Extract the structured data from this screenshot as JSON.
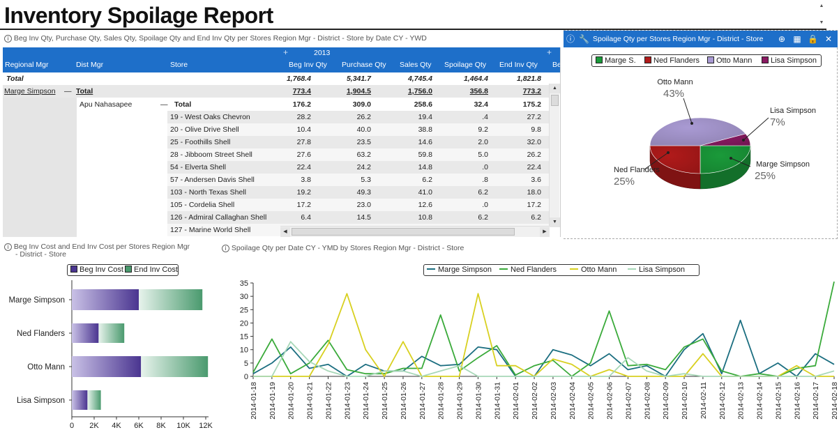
{
  "report": {
    "title": "Inventory Spoilage Report"
  },
  "table": {
    "caption": "Beg Inv Qty, Purchase Qty, Sales Qty, Spoilage Qty and End Inv Qty per Stores Region Mgr - District - Store by Date CY - YWD",
    "year": "2013",
    "headers": {
      "regional_mgr": "Regional Mgr",
      "dist_mgr": "Dist Mgr",
      "store": "Store",
      "beg": "Beg Inv Qty",
      "purchase": "Purchase Qty",
      "sales": "Sales Qty",
      "spoilage": "Spoilage Qty",
      "end": "End Inv Qty",
      "extra": "Be"
    },
    "grand_total": {
      "label": "Total",
      "beg": "1,768.4",
      "purchase": "5,341.7",
      "sales": "4,745.4",
      "spoilage": "1,464.4",
      "end": "1,821.8"
    },
    "region_row": {
      "mgr": "Marge Simpson",
      "collapse": "—",
      "label": "Total",
      "beg": "773.4",
      "purchase": "1,904.5",
      "sales": "1,756.0",
      "spoilage": "356.8",
      "end": "773.2"
    },
    "district_row": {
      "mgr": "Apu Nahasapee",
      "collapse": "—",
      "label": "Total",
      "beg": "176.2",
      "purchase": "309.0",
      "sales": "258.6",
      "spoilage": "32.4",
      "end": "175.2"
    },
    "stores": [
      {
        "store": "19 - West Oaks Chevron",
        "beg": "28.2",
        "purchase": "26.2",
        "sales": "19.4",
        "spoilage": ".4",
        "end": "27.2"
      },
      {
        "store": "20 - Olive Drive Shell",
        "beg": "10.4",
        "purchase": "40.0",
        "sales": "38.8",
        "spoilage": "9.2",
        "end": "9.8"
      },
      {
        "store": "25 - Foothills Shell",
        "beg": "27.8",
        "purchase": "23.5",
        "sales": "14.6",
        "spoilage": "2.0",
        "end": "32.0"
      },
      {
        "store": "28 - Jibboom Street Shell",
        "beg": "27.6",
        "purchase": "63.2",
        "sales": "59.8",
        "spoilage": "5.0",
        "end": "26.2"
      },
      {
        "store": "54 - Elverta Shell",
        "beg": "22.4",
        "purchase": "24.2",
        "sales": "14.8",
        "spoilage": ".0",
        "end": "22.4"
      },
      {
        "store": "57 - Andersen Davis Shell",
        "beg": "3.8",
        "purchase": "5.3",
        "sales": "6.2",
        "spoilage": ".8",
        "end": "3.6"
      },
      {
        "store": "103 - North Texas Shell",
        "beg": "19.2",
        "purchase": "49.3",
        "sales": "41.0",
        "spoilage": "6.2",
        "end": "18.0"
      },
      {
        "store": "105 - Cordelia Shell",
        "beg": "17.2",
        "purchase": "23.0",
        "sales": "12.6",
        "spoilage": ".0",
        "end": "17.2"
      },
      {
        "store": "126 - Admiral Callaghan Shell",
        "beg": "6.4",
        "purchase": "14.5",
        "sales": "10.8",
        "spoilage": "6.2",
        "end": "6.2"
      },
      {
        "store": "127 - Marine World Shell",
        "beg": "",
        "purchase": "",
        "sales": "",
        "spoilage": "",
        "end": ""
      }
    ]
  },
  "pie_panel": {
    "caption": "Spoilage Qty per Stores Region Mgr - District - Store",
    "icons": [
      "info-icon",
      "wrench-icon",
      "add-icon",
      "grid-icon",
      "lock-icon",
      "close-icon"
    ],
    "legend": [
      {
        "label": "Marge S.",
        "color": "#1a9a3a"
      },
      {
        "label": "Ned Flanders",
        "color": "#b01a1a"
      },
      {
        "label": "Otto Mann",
        "color": "#a99ad3"
      },
      {
        "label": "Lisa Simpson",
        "color": "#8a1a62"
      }
    ]
  },
  "bar_panel": {
    "caption_line1": "Beg Inv Cost and End Inv Cost per Stores Region Mgr",
    "caption_line2": "- District - Store"
  },
  "line_panel": {
    "caption": "Spoilage Qty per Date CY - YMD by Stores Region Mgr - District - Store"
  },
  "colors": {
    "header_blue": "#1e6fc9"
  },
  "chart_data": [
    {
      "type": "pie",
      "categories": [
        "Marge Simpson",
        "Ned Flanders",
        "Otto Mann",
        "Lisa Simpson"
      ],
      "values": [
        25,
        25,
        43,
        7
      ],
      "value_labels": [
        "25%",
        "25%",
        "43%",
        "7%"
      ],
      "colors": [
        "#1a9a3a",
        "#b01a1a",
        "#a99ad3",
        "#8a1a62"
      ]
    },
    {
      "type": "bar",
      "orientation": "horizontal",
      "stacked": true,
      "categories": [
        "Marge Simpson",
        "Ned Flanders",
        "Otto Mann",
        "Lisa Simpson"
      ],
      "series": [
        {
          "name": "Beg Inv Cost",
          "values": [
            6000,
            2400,
            6200,
            1400
          ],
          "color": "#5a3f9e"
        },
        {
          "name": "End Inv Cost",
          "values": [
            5700,
            2300,
            6000,
            1200
          ],
          "color": "#4a9a6e"
        }
      ],
      "xlim": [
        0,
        12000
      ],
      "xticks": [
        0,
        2000,
        4000,
        6000,
        8000,
        10000,
        12000
      ],
      "xtick_labels": [
        "0",
        "2K",
        "4K",
        "6K",
        "8K",
        "10K",
        "12K"
      ],
      "legend": "top"
    },
    {
      "type": "line",
      "x": [
        "2014-01-18",
        "2014-01-19",
        "2014-01-20",
        "2014-01-21",
        "2014-01-22",
        "2014-01-23",
        "2014-01-24",
        "2014-01-25",
        "2014-01-26",
        "2014-01-27",
        "2014-01-28",
        "2014-01-29",
        "2014-01-30",
        "2014-01-31",
        "2014-02-01",
        "2014-02-02",
        "2014-02-03",
        "2014-02-04",
        "2014-02-05",
        "2014-02-06",
        "2014-02-07",
        "2014-02-08",
        "2014-02-09",
        "2014-02-10",
        "2014-02-11",
        "2014-02-12",
        "2014-02-13",
        "2014-02-14",
        "2014-02-15",
        "2014-02-16",
        "2014-02-17",
        "2014-02-18"
      ],
      "series": [
        {
          "name": "Marge Simpson",
          "color": "#1b6e80",
          "values": [
            1,
            5,
            11,
            3,
            4.5,
            0,
            4.5,
            2,
            2,
            7.5,
            4,
            4.5,
            11,
            10,
            0,
            0,
            10,
            8,
            4,
            8.5,
            2.5,
            4,
            0,
            10,
            16,
            1,
            21,
            1,
            5,
            0,
            8.5,
            4.5
          ]
        },
        {
          "name": "Ned Flanders",
          "color": "#3aaa3a",
          "values": [
            1.5,
            14,
            1,
            5,
            13.5,
            2.5,
            1,
            1,
            3,
            3,
            23,
            2,
            7,
            11.5,
            0.5,
            4,
            6,
            0,
            5,
            24.5,
            4,
            4.5,
            2.5,
            11,
            14,
            2,
            0,
            1,
            0,
            3,
            4,
            35.5
          ]
        },
        {
          "name": "Otto Mann",
          "color": "#d8d020",
          "values": [
            0,
            0,
            0,
            0,
            12,
            31,
            10,
            0,
            13,
            0,
            0,
            0,
            31,
            4,
            4,
            0,
            6.5,
            4.5,
            0,
            2.5,
            0,
            0,
            0,
            0,
            8.5,
            0,
            0,
            0,
            0,
            4,
            0,
            0
          ]
        },
        {
          "name": "Lisa Simpson",
          "color": "#a8d8b8",
          "values": [
            0,
            0,
            13,
            5.5,
            2,
            0,
            0,
            2,
            2,
            0,
            2,
            4,
            0,
            0,
            0,
            0,
            0,
            0,
            0,
            0,
            7,
            2,
            0,
            1,
            0,
            0,
            0,
            0,
            0,
            0,
            0,
            2
          ]
        }
      ],
      "ylim": [
        0,
        35
      ],
      "yticks": [
        0,
        5,
        10,
        15,
        20,
        25,
        30,
        35
      ],
      "legend": "top"
    }
  ]
}
